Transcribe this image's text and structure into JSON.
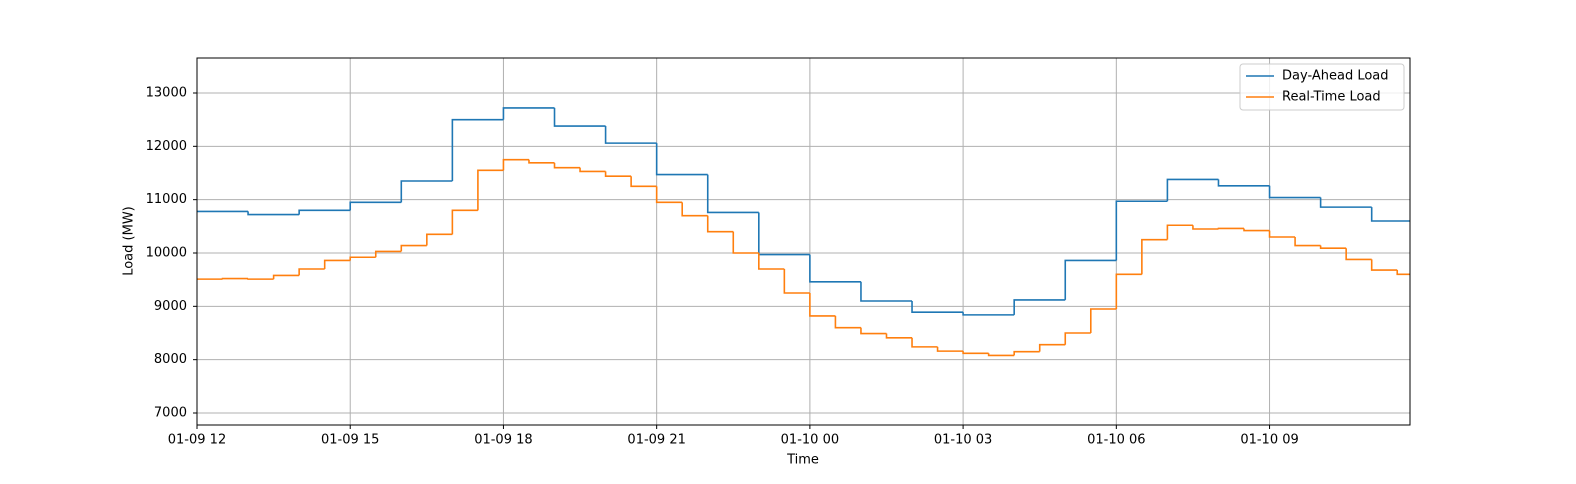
{
  "chart_data": {
    "type": "step",
    "xlabel": "Time",
    "ylabel": "Load (MW)",
    "xlim": [
      "01-09 12",
      "01-10 11:45"
    ],
    "xticks": [
      "01-09 12",
      "01-09 15",
      "01-09 18",
      "01-09 21",
      "01-10 00",
      "01-10 03",
      "01-10 06",
      "01-10 09"
    ],
    "ylim": [
      6775,
      13656
    ],
    "yticks": [
      7000,
      8000,
      9000,
      10000,
      11000,
      12000,
      13000
    ],
    "grid": true,
    "legend": "upper right",
    "series": [
      {
        "name": "Day-Ahead Load",
        "color": "#1f77b4",
        "x": [
          "01-09 12",
          "01-09 13",
          "01-09 14",
          "01-09 15",
          "01-09 16",
          "01-09 17",
          "01-09 18",
          "01-09 19",
          "01-09 20",
          "01-09 21",
          "01-09 22",
          "01-09 23",
          "01-10 00",
          "01-10 01",
          "01-10 02",
          "01-10 03",
          "01-10 04",
          "01-10 05",
          "01-10 06",
          "01-10 07",
          "01-10 08",
          "01-10 09",
          "01-10 10",
          "01-10 11"
        ],
        "values": [
          10780,
          10720,
          10800,
          10950,
          11350,
          12500,
          12720,
          12380,
          12060,
          11470,
          10760,
          9970,
          9460,
          9100,
          8890,
          8840,
          9120,
          9860,
          10970,
          11380,
          11260,
          11040,
          10860,
          10600
        ]
      },
      {
        "name": "Real-Time Load",
        "color": "#ff7f0e",
        "x": [
          "01-09 12:00",
          "01-09 12:30",
          "01-09 13:00",
          "01-09 13:30",
          "01-09 14:00",
          "01-09 14:30",
          "01-09 15:00",
          "01-09 15:30",
          "01-09 16:00",
          "01-09 16:30",
          "01-09 17:00",
          "01-09 17:30",
          "01-09 18:00",
          "01-09 18:30",
          "01-09 19:00",
          "01-09 19:30",
          "01-09 20:00",
          "01-09 20:30",
          "01-09 21:00",
          "01-09 21:30",
          "01-09 22:00",
          "01-09 22:30",
          "01-09 23:00",
          "01-09 23:30",
          "01-10 00:00",
          "01-10 00:30",
          "01-10 01:00",
          "01-10 01:30",
          "01-10 02:00",
          "01-10 02:30",
          "01-10 03:00",
          "01-10 03:30",
          "01-10 04:00",
          "01-10 04:30",
          "01-10 05:00",
          "01-10 05:30",
          "01-10 06:00",
          "01-10 06:30",
          "01-10 07:00",
          "01-10 07:30",
          "01-10 08:00",
          "01-10 08:30",
          "01-10 09:00",
          "01-10 09:30",
          "01-10 10:00",
          "01-10 10:30",
          "01-10 11:00",
          "01-10 11:30"
        ],
        "values": [
          9510,
          9520,
          9510,
          9580,
          9700,
          9860,
          9920,
          10030,
          10140,
          10350,
          10800,
          11550,
          11750,
          11690,
          11600,
          11530,
          11440,
          11250,
          10950,
          10700,
          10400,
          10000,
          9700,
          9250,
          8820,
          8600,
          8490,
          8410,
          8240,
          8160,
          8120,
          8080,
          8150,
          8280,
          8500,
          8950,
          9600,
          10250,
          10520,
          10450,
          10460,
          10420,
          10300,
          10140,
          10090,
          9880,
          9680,
          9600
        ]
      }
    ]
  }
}
